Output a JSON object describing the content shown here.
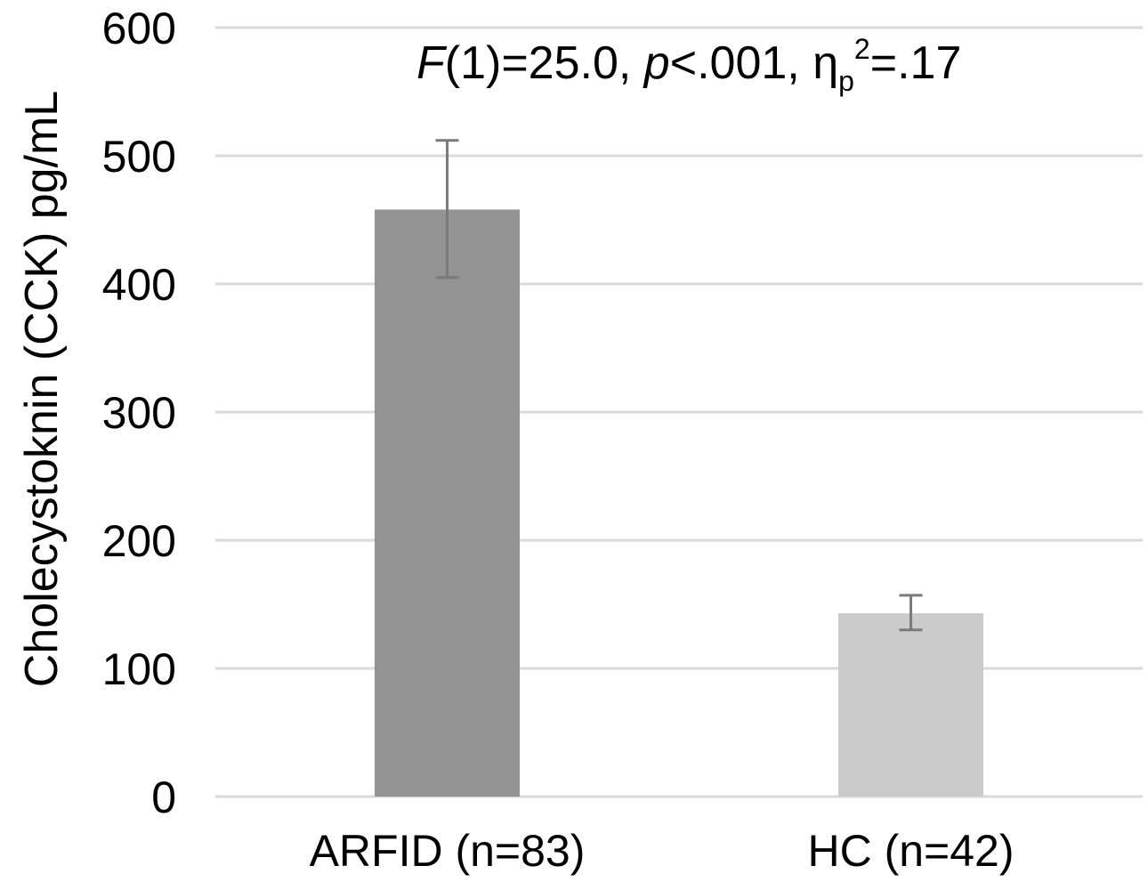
{
  "chart_data": {
    "type": "bar",
    "categories": [
      "ARFID (n=83)",
      "HC (n=42)"
    ],
    "values": [
      458,
      143
    ],
    "error_low": [
      405,
      130
    ],
    "error_high": [
      512,
      157
    ],
    "bar_colors": [
      "#939393",
      "#cbcbcb"
    ],
    "ylabel": "Cholecystoknin (CCK) pg/mL",
    "xlabel": "",
    "ylim": [
      0,
      600
    ],
    "yticks": [
      0,
      100,
      200,
      300,
      400,
      500,
      600
    ],
    "grid": true,
    "gridline_color": "#d9d9d9",
    "error_bar_color": "#7a7a7a",
    "annotation": {
      "F_symbol": "F",
      "F_args": "(1)=25.0, ",
      "p_symbol": "p",
      "p_value": "<.001, ",
      "eta_symbol": "η",
      "eta_sub": "p",
      "eta_sup": "2",
      "eta_value": "=.17"
    }
  }
}
